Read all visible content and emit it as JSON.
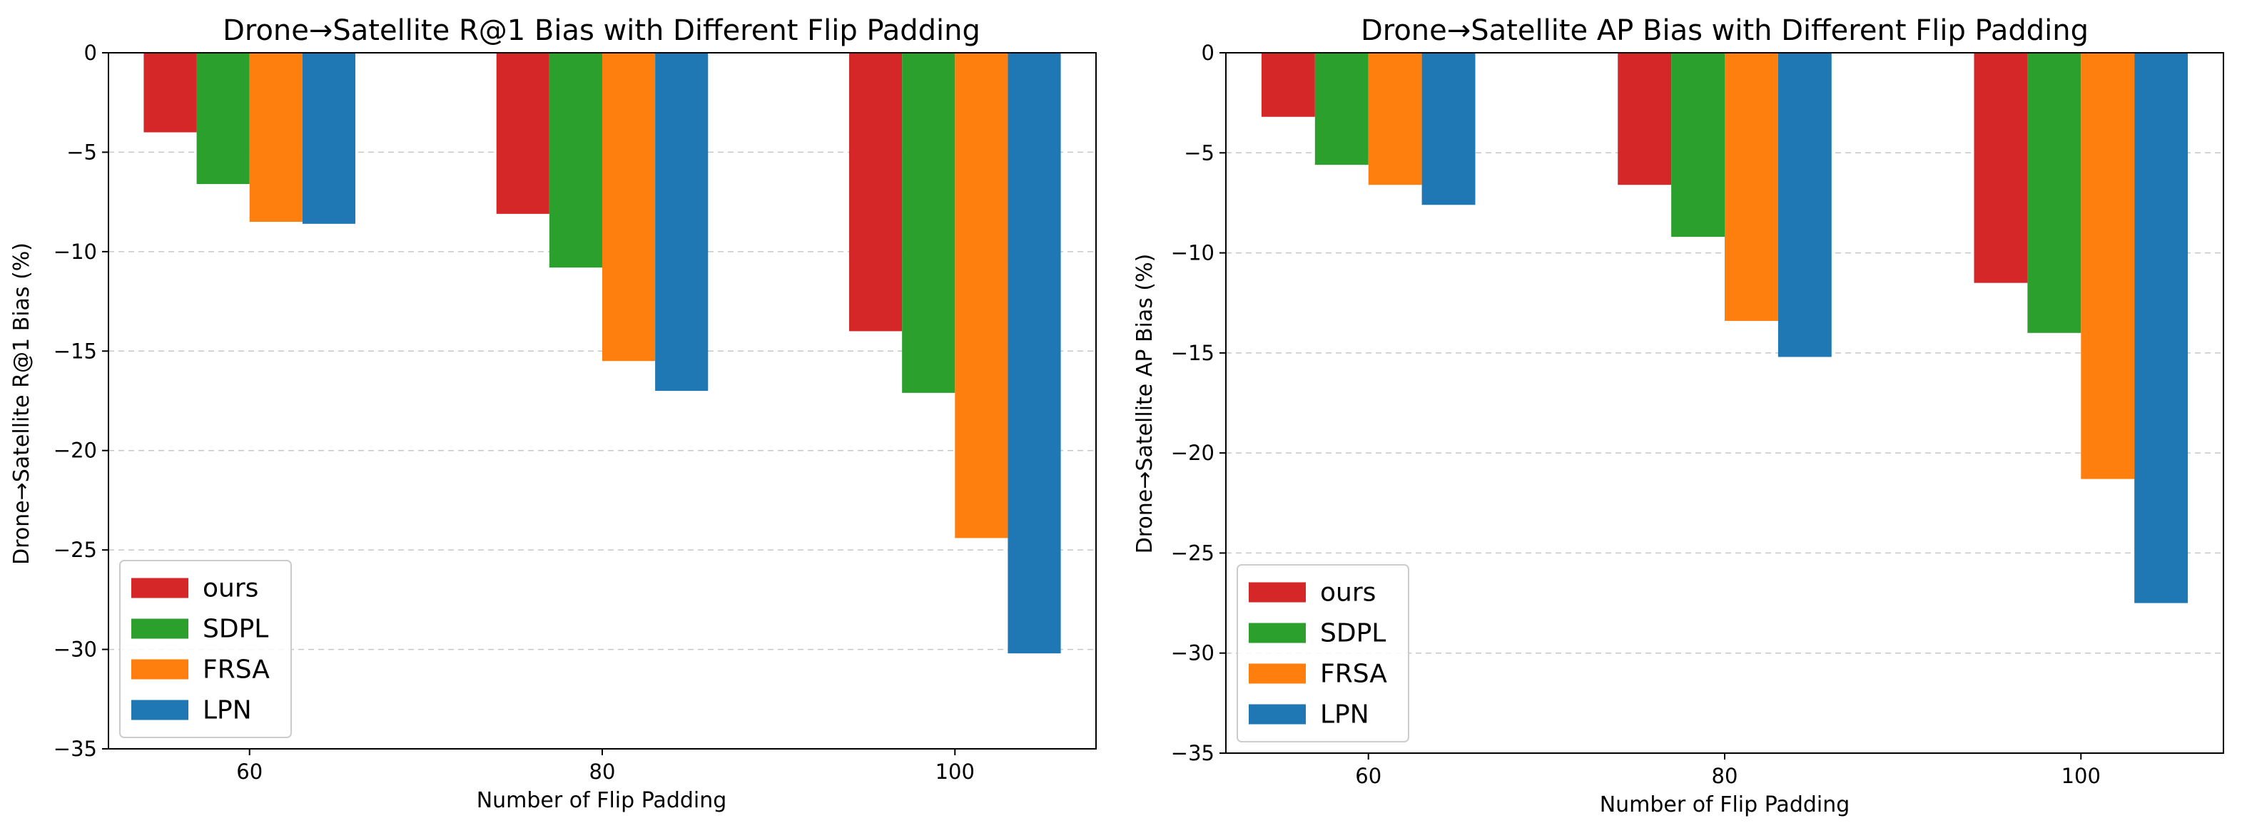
{
  "chart_data": [
    {
      "type": "bar",
      "title": "Drone→Satellite R@1 Bias with Different Flip Padding",
      "xlabel": "Number of Flip Padding",
      "ylabel": "Drone→Satellite R@1 Bias (%)",
      "categories": [
        "60",
        "80",
        "100"
      ],
      "ylim": [
        -35,
        0
      ],
      "yticks": [
        0,
        -5,
        -10,
        -15,
        -20,
        -25,
        -30,
        -35
      ],
      "ytick_labels": [
        "0",
        "−5",
        "−10",
        "−15",
        "−20",
        "−25",
        "−30",
        "−35"
      ],
      "grid": "horizontal dashed",
      "legend_position": "lower-left",
      "series": [
        {
          "name": "ours",
          "color": "#d62728",
          "values": [
            -4.0,
            -8.1,
            -14.0
          ]
        },
        {
          "name": "SDPL",
          "color": "#2ca02c",
          "values": [
            -6.6,
            -10.8,
            -17.1
          ]
        },
        {
          "name": "FRSA",
          "color": "#ff7f0e",
          "values": [
            -8.5,
            -15.5,
            -24.4
          ]
        },
        {
          "name": "LPN",
          "color": "#1f77b4",
          "values": [
            -8.6,
            -17.0,
            -30.2
          ]
        }
      ]
    },
    {
      "type": "bar",
      "title": "Drone→Satellite AP Bias with Different Flip Padding",
      "xlabel": "Number of Flip Padding",
      "ylabel": "Drone→Satellite AP Bias (%)",
      "categories": [
        "60",
        "80",
        "100"
      ],
      "ylim": [
        -35,
        0
      ],
      "yticks": [
        0,
        -5,
        -10,
        -15,
        -20,
        -25,
        -30,
        -35
      ],
      "ytick_labels": [
        "0",
        "−5",
        "−10",
        "−15",
        "−20",
        "−25",
        "−30",
        "−35"
      ],
      "grid": "horizontal dashed",
      "legend_position": "lower-left",
      "series": [
        {
          "name": "ours",
          "color": "#d62728",
          "values": [
            -3.2,
            -6.6,
            -11.5
          ]
        },
        {
          "name": "SDPL",
          "color": "#2ca02c",
          "values": [
            -5.6,
            -9.2,
            -14.0
          ]
        },
        {
          "name": "FRSA",
          "color": "#ff7f0e",
          "values": [
            -6.6,
            -13.4,
            -21.3
          ]
        },
        {
          "name": "LPN",
          "color": "#1f77b4",
          "values": [
            -7.6,
            -15.2,
            -27.5
          ]
        }
      ]
    }
  ]
}
